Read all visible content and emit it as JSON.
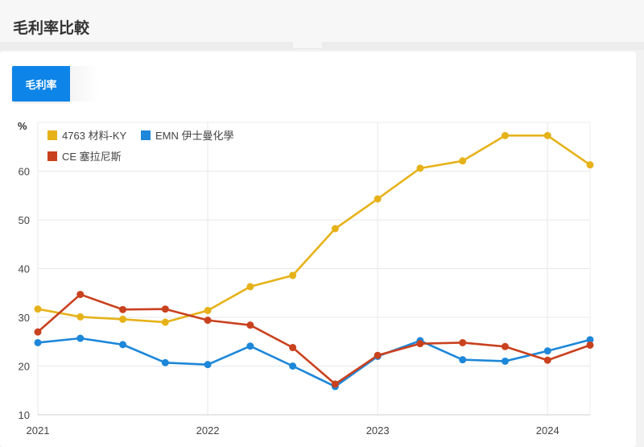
{
  "header": {
    "title": "毛利率比較"
  },
  "tabs": [
    {
      "label": "毛利率",
      "active": true
    }
  ],
  "colors": {
    "accent": "#0d84e8",
    "series": [
      "#e6b219",
      "#1d87d9",
      "#c9411e"
    ]
  },
  "chart_data": {
    "type": "line",
    "ylabel": "%",
    "ylim": [
      10,
      70
    ],
    "yticks": [
      10,
      20,
      30,
      40,
      50,
      60
    ],
    "xlim": [
      2021,
      2024.25
    ],
    "xticks": [
      2021,
      2022,
      2023,
      2024
    ],
    "xtick_labels": [
      "2021",
      "2022",
      "2023",
      "2024"
    ],
    "x": [
      2021.0,
      2021.25,
      2021.5,
      2021.75,
      2022.0,
      2022.25,
      2022.5,
      2022.75,
      2023.0,
      2023.25,
      2023.5,
      2023.75,
      2024.0,
      2024.25
    ],
    "legend_position": "top-left",
    "series": [
      {
        "name": "4763 材料-KY",
        "color": "#e6b219",
        "values": [
          31.7,
          30.1,
          29.6,
          29.0,
          31.4,
          36.3,
          38.6,
          48.2,
          54.3,
          60.6,
          62.1,
          67.3,
          67.3,
          61.3
        ]
      },
      {
        "name": "EMN 伊士曼化學",
        "color": "#1d87d9",
        "values": [
          24.8,
          25.7,
          24.4,
          20.7,
          20.3,
          24.1,
          20.0,
          15.8,
          22.0,
          25.2,
          21.3,
          21.0,
          23.1,
          25.4
        ]
      },
      {
        "name": "CE 塞拉尼斯",
        "color": "#c9411e",
        "values": [
          27.0,
          34.7,
          31.6,
          31.7,
          29.4,
          28.4,
          23.8,
          16.3,
          22.2,
          24.6,
          24.8,
          24.0,
          21.2,
          24.3
        ]
      }
    ]
  }
}
